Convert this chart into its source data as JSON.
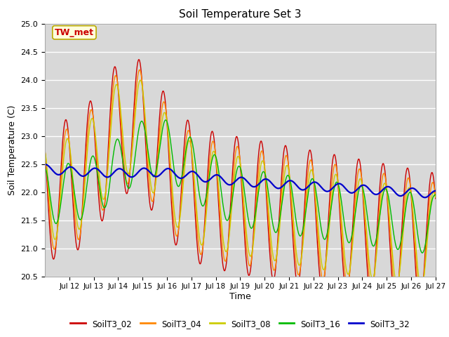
{
  "title": "Soil Temperature Set 3",
  "xlabel": "Time",
  "ylabel": "Soil Temperature (C)",
  "ylim": [
    20.5,
    25.0
  ],
  "annotation_text": "TW_met",
  "annotation_color": "#cc0000",
  "annotation_bg": "#ffffdd",
  "annotation_border": "#bbaa00",
  "series_colors": {
    "SoilT3_02": "#cc0000",
    "SoilT3_04": "#ff8800",
    "SoilT3_08": "#cccc00",
    "SoilT3_16": "#00bb00",
    "SoilT3_32": "#0000cc"
  },
  "plot_bg": "#d8d8d8",
  "n_days": 16,
  "tick_labels": [
    "Jul 12",
    "Jul 13",
    "Jul 14",
    "Jul 15",
    "Jul 16",
    "Jul 17",
    "Jul 18",
    "Jul 19",
    "Jul 20",
    "Jul 21",
    "Jul 22",
    "Jul 23",
    "Jul 24",
    "Jul 25",
    "Jul 26",
    "Jul 27"
  ]
}
